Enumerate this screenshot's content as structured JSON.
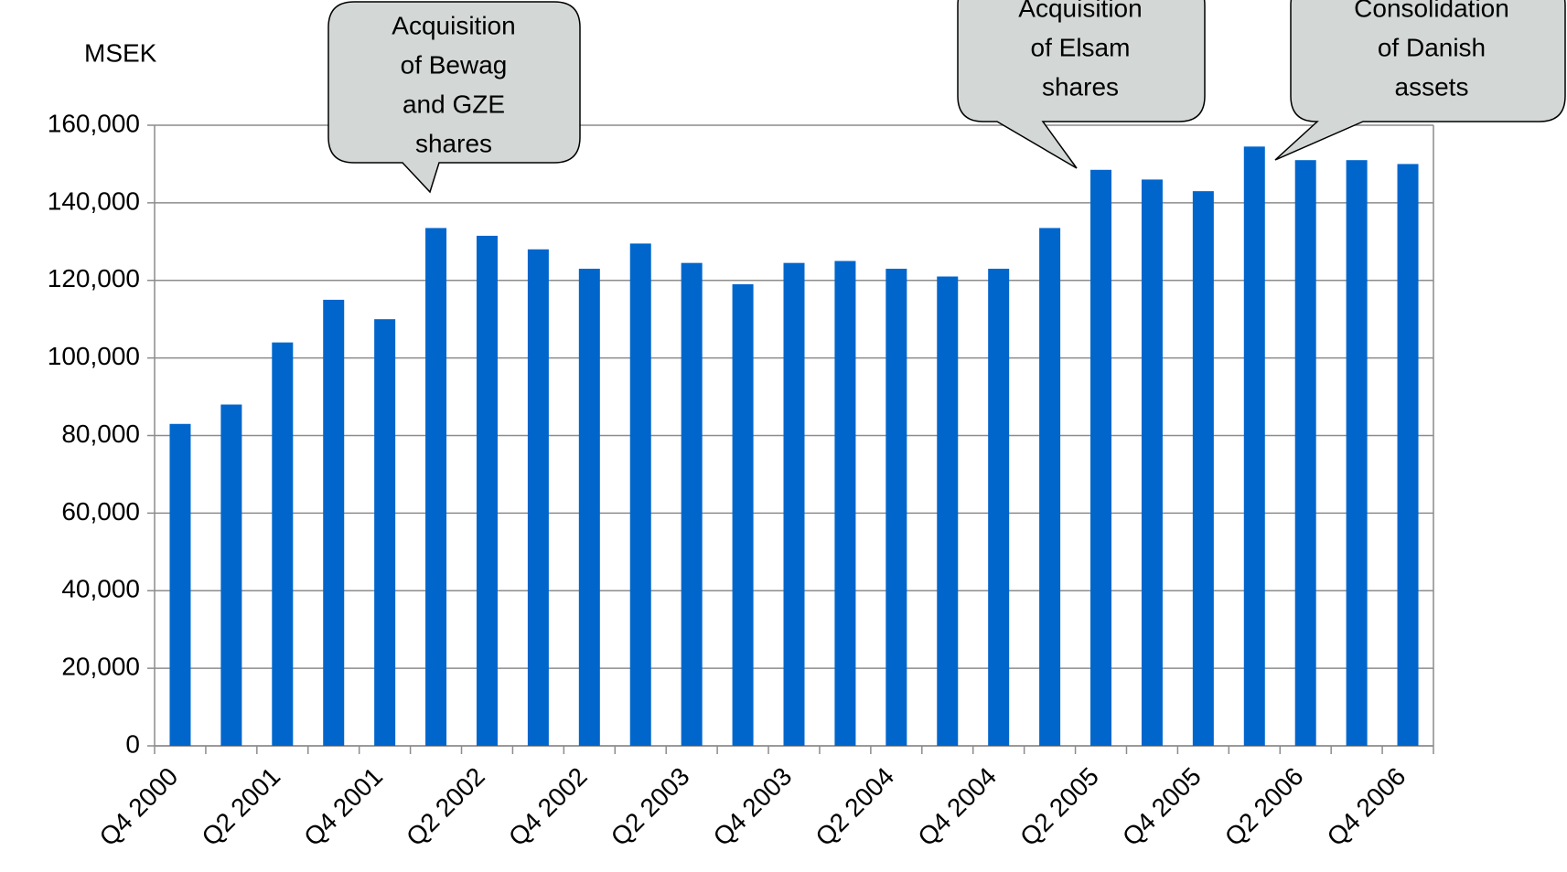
{
  "chart_data": {
    "type": "bar",
    "y_label": "MSEK",
    "categories": [
      "Q4 2000",
      null,
      "Q2 2001",
      null,
      "Q4 2001",
      null,
      "Q2 2002",
      null,
      "Q4 2002",
      null,
      "Q2 2003",
      null,
      "Q4 2003",
      null,
      "Q2 2004",
      null,
      "Q4 2004",
      null,
      "Q2 2005",
      null,
      "Q4 2005",
      null,
      "Q2 2006",
      null,
      "Q4 2006"
    ],
    "values": [
      83000,
      88000,
      104000,
      115000,
      110000,
      133500,
      131500,
      128000,
      123000,
      129500,
      124500,
      119000,
      124500,
      125000,
      123000,
      121000,
      123000,
      133500,
      148500,
      146000,
      143000,
      154500,
      151000,
      151000,
      150000
    ],
    "color": "#0066cc",
    "ylim": [
      0,
      160000
    ],
    "yticks": [
      {
        "value": 0,
        "label": "0"
      },
      {
        "value": 20000,
        "label": "20,000"
      },
      {
        "value": 40000,
        "label": "40,000"
      },
      {
        "value": 60000,
        "label": "60,000"
      },
      {
        "value": 80000,
        "label": "80,000"
      },
      {
        "value": 100000,
        "label": "100,000"
      },
      {
        "value": 120000,
        "label": "120,000"
      },
      {
        "value": 140000,
        "label": "140,000"
      },
      {
        "value": 160000,
        "label": "160,000"
      }
    ],
    "grid": true,
    "annotations": [
      {
        "lines": [
          "Acquisition",
          "of Bewag",
          "and GZE",
          "shares"
        ]
      },
      {
        "lines": [
          "Acquisition",
          "of Elsam",
          "shares"
        ]
      },
      {
        "lines": [
          "Consolidation",
          "of Danish",
          "assets"
        ]
      }
    ]
  }
}
